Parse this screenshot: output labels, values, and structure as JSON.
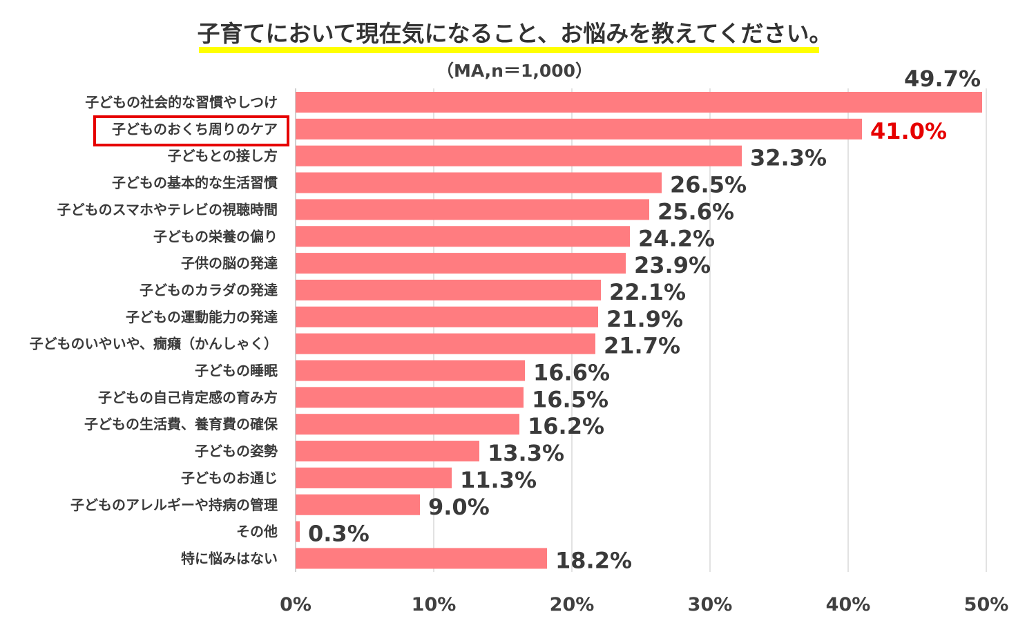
{
  "chart_data": {
    "type": "bar",
    "orientation": "horizontal",
    "title": "子育てにおいて現在気になること、お悩みを教えてください。",
    "subtitle": "（MA,n＝1,000）",
    "xlim": [
      0,
      50
    ],
    "xticks": [
      0,
      10,
      20,
      30,
      40,
      50
    ],
    "xtick_labels": [
      "0%",
      "10%",
      "20%",
      "30%",
      "40%",
      "50%"
    ],
    "grid": true,
    "bar_color": "#ff7c80",
    "highlight_color": "#e60000",
    "title_underline_color": "#ffff00",
    "highlight_index": 1,
    "categories": [
      "子どもの社会的な習慣やしつけ",
      "子どものおくち周りのケア",
      "子どもとの接し方",
      "子どもの基本的な生活習慣",
      "子どものスマホやテレビの視聴時間",
      "子どもの栄養の偏り",
      "子供の脳の発達",
      "子どものカラダの発達",
      "子どもの運動能力の発達",
      "子どものいやいや、癇癪（かんしゃく）",
      "子どもの睡眠",
      "子どもの自己肯定感の育み方",
      "子どもの生活費、養育費の確保",
      "子どもの姿勢",
      "子どものお通じ",
      "子どものアレルギーや持病の管理",
      "その他",
      "特に悩みはない"
    ],
    "values": [
      49.7,
      41.0,
      32.3,
      26.5,
      25.6,
      24.2,
      23.9,
      22.1,
      21.9,
      21.7,
      16.6,
      16.5,
      16.2,
      13.3,
      11.3,
      9.0,
      0.3,
      18.2
    ],
    "value_labels": [
      "49.7%",
      "41.0%",
      "32.3%",
      "26.5%",
      "25.6%",
      "24.2%",
      "23.9%",
      "22.1%",
      "21.9%",
      "21.7%",
      "16.6%",
      "16.5%",
      "16.2%",
      "13.3%",
      "11.3%",
      "9.0%",
      "0.3%",
      "18.2%"
    ]
  }
}
